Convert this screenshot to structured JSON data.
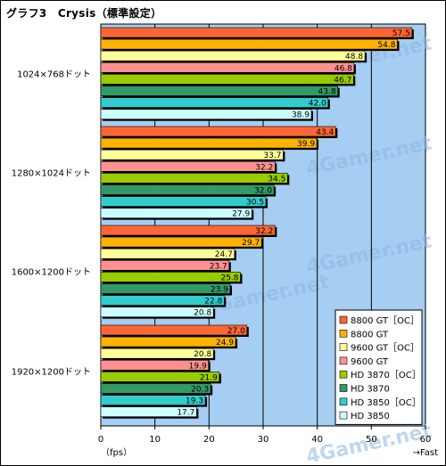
{
  "title": "グラフ3　Crysis（標準設定）",
  "watermark": "4Gamer.net",
  "chart_data": {
    "type": "bar",
    "orientation": "horizontal",
    "title": "グラフ3　Crysis（標準設定）",
    "categories": [
      "1024×768ドット",
      "1280×1024ドット",
      "1600×1200ドット",
      "1920×1200ドット"
    ],
    "xlim": [
      0,
      60
    ],
    "x_ticks": [
      "0",
      "10",
      "20",
      "30",
      "40",
      "50",
      "60"
    ],
    "x_unit": "（fps）",
    "x_direction": "→Fast",
    "grid": true,
    "legend_position": "bottom-right",
    "series": [
      {
        "name": "8800 GT［OC］",
        "color": "#ff6633",
        "values": [
          57.5,
          43.4,
          32.2,
          27.0
        ],
        "labels": [
          "57.5",
          "43.4",
          "32.2",
          "27.0"
        ]
      },
      {
        "name": "8800 GT",
        "color": "#ffb300",
        "values": [
          54.8,
          39.9,
          29.7,
          24.9
        ],
        "labels": [
          "54.8",
          "39.9",
          "29.7",
          "24.9"
        ]
      },
      {
        "name": "9600 GT［OC］",
        "color": "#ffff99",
        "values": [
          48.8,
          33.7,
          24.7,
          20.8
        ],
        "labels": [
          "48.8",
          "33.7",
          "24.7",
          "20.8"
        ]
      },
      {
        "name": "9600 GT",
        "color": "#ff9090",
        "values": [
          46.8,
          32.2,
          23.7,
          19.9
        ],
        "labels": [
          "46.8",
          "32.2",
          "23.7",
          "19.9"
        ]
      },
      {
        "name": "HD 3870［OC］",
        "color": "#99cc00",
        "values": [
          46.7,
          34.5,
          25.8,
          21.9
        ],
        "labels": [
          "46.7",
          "34.5",
          "25.8",
          "21.9"
        ]
      },
      {
        "name": "HD 3870",
        "color": "#339966",
        "values": [
          43.8,
          32.0,
          23.9,
          20.3
        ],
        "labels": [
          "43.8",
          "32.0",
          "23.9",
          "20.3"
        ]
      },
      {
        "name": "HD 3850［OC］",
        "color": "#33cccc",
        "values": [
          42.0,
          30.5,
          22.8,
          19.3
        ],
        "labels": [
          "42.0",
          "30.5",
          "22.8",
          "19.3"
        ]
      },
      {
        "name": "HD 3850",
        "color": "#ccffff",
        "values": [
          38.9,
          27.9,
          20.8,
          17.7
        ],
        "labels": [
          "38.9",
          "27.9",
          "20.8",
          "17.7"
        ]
      }
    ]
  }
}
